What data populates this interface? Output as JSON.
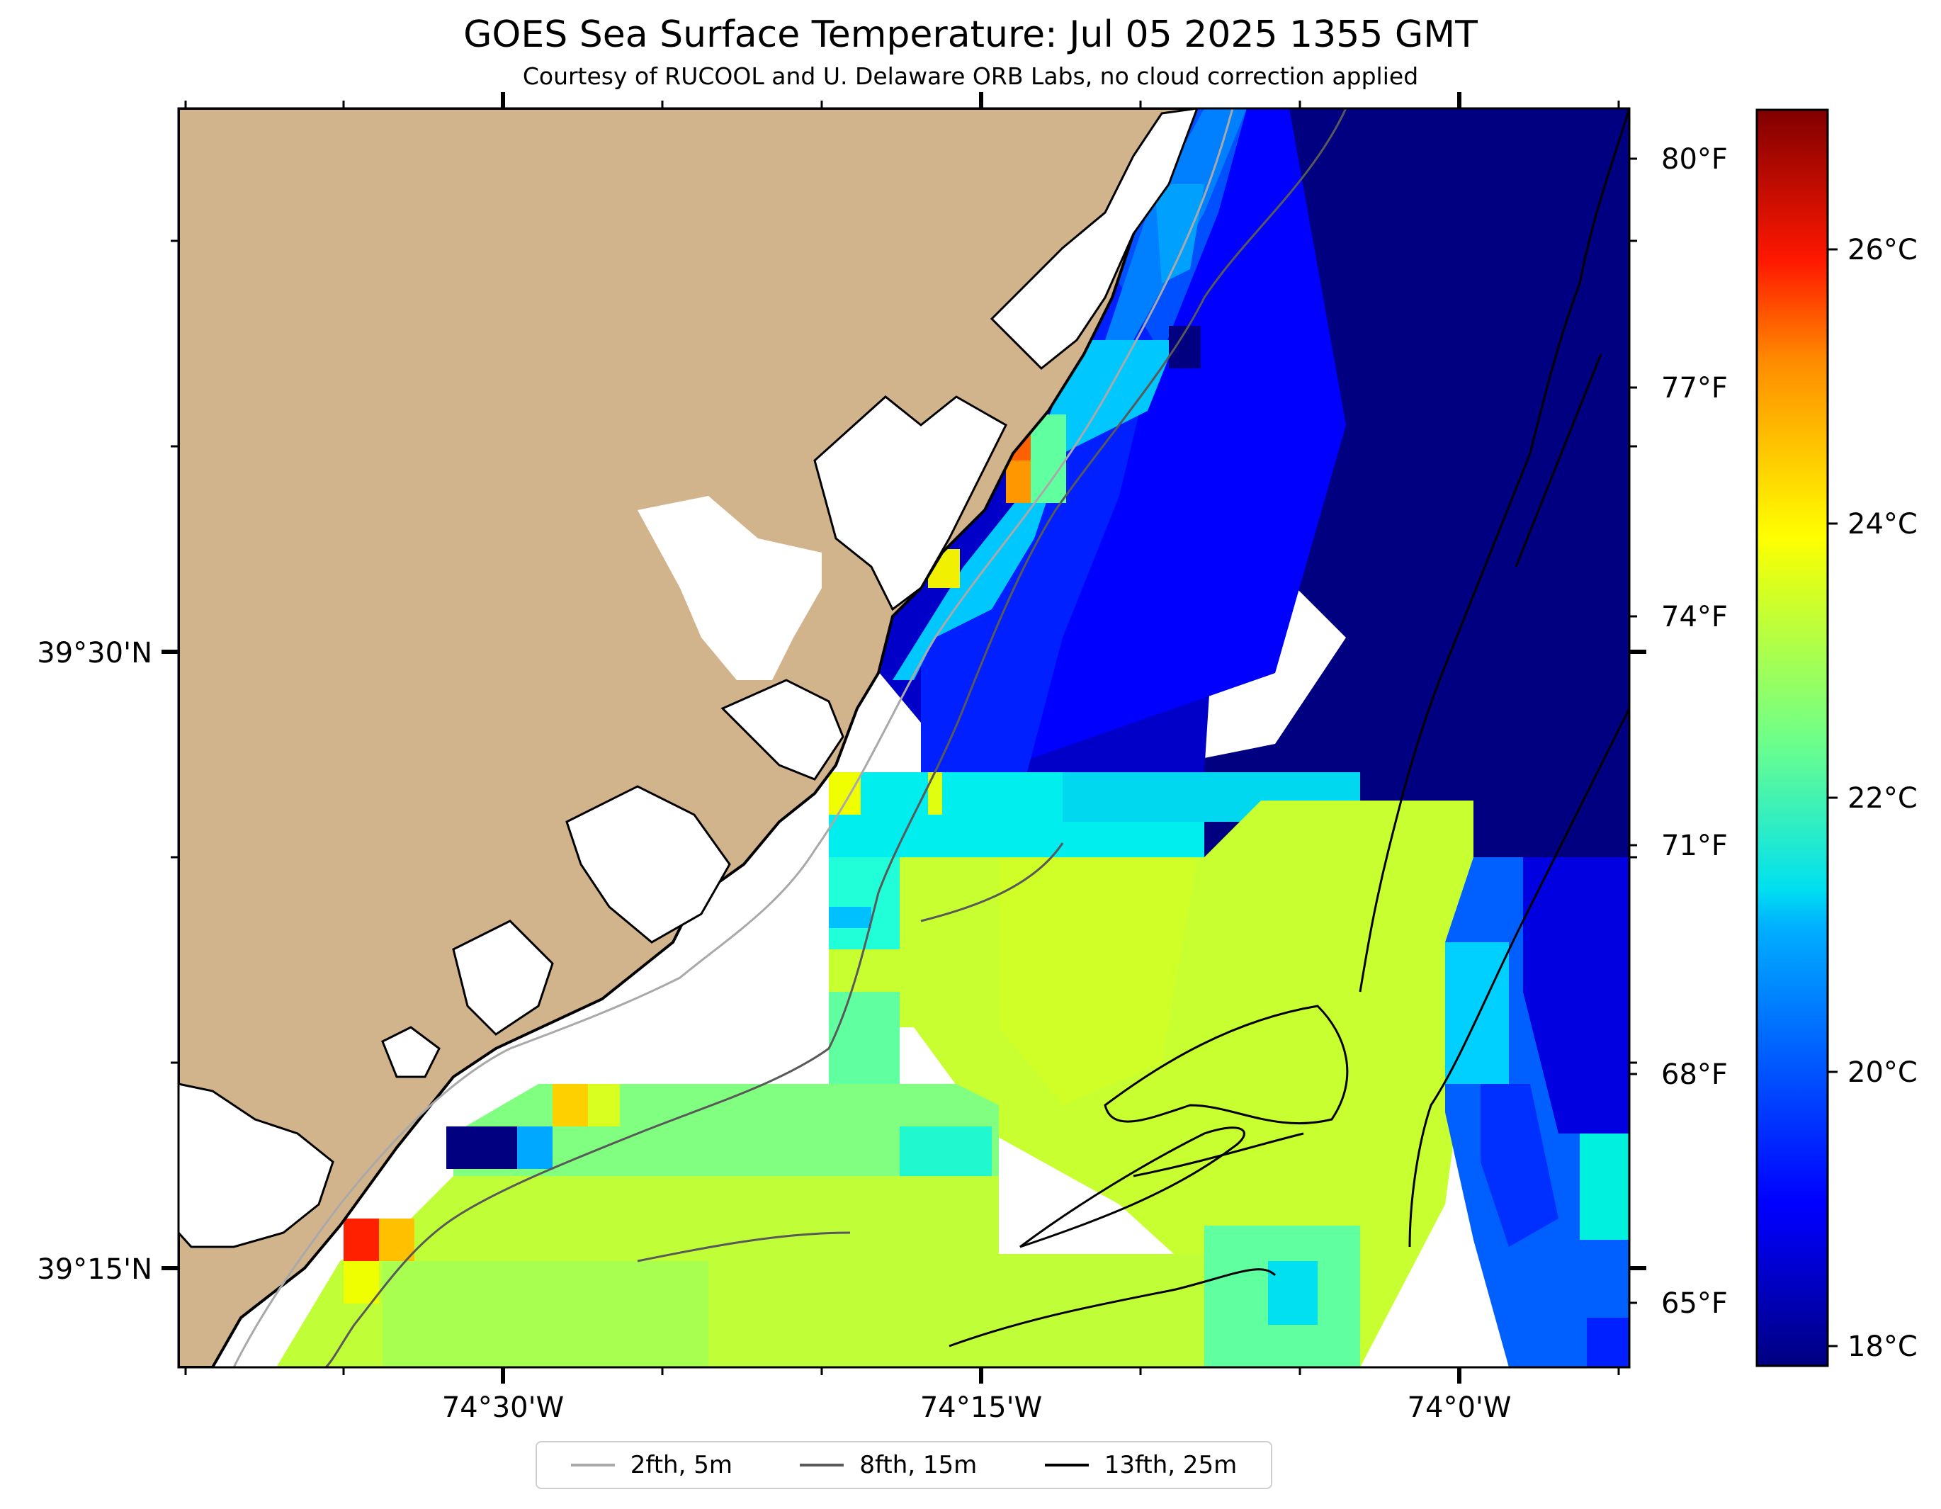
{
  "title": "GOES Sea Surface Temperature: Jul 05 2025 1355 GMT",
  "subtitle": "Courtesy of RUCOOL and U. Delaware ORB Labs, no cloud correction applied",
  "map": {
    "lon_ticks": [
      "74°30'W",
      "74°15'W",
      "74°0'W"
    ],
    "lat_ticks": [
      "39°30'N",
      "39°15'N"
    ],
    "land_color": "#d2b48c",
    "coast_color": "#000000"
  },
  "colorbar": {
    "celsius_ticks": [
      "26°C",
      "24°C",
      "22°C",
      "20°C",
      "18°C"
    ],
    "fahrenheit_ticks": [
      "80°F",
      "77°F",
      "74°F",
      "71°F",
      "68°F",
      "65°F"
    ],
    "range_celsius": [
      17.8,
      27.2
    ],
    "colormap": "jet"
  },
  "legend": [
    {
      "label": "2fth, 5m",
      "color": "#a9a9a9"
    },
    {
      "label": "8fth, 15m",
      "color": "#595959"
    },
    {
      "label": "13fth, 25m",
      "color": "#000000"
    }
  ]
}
